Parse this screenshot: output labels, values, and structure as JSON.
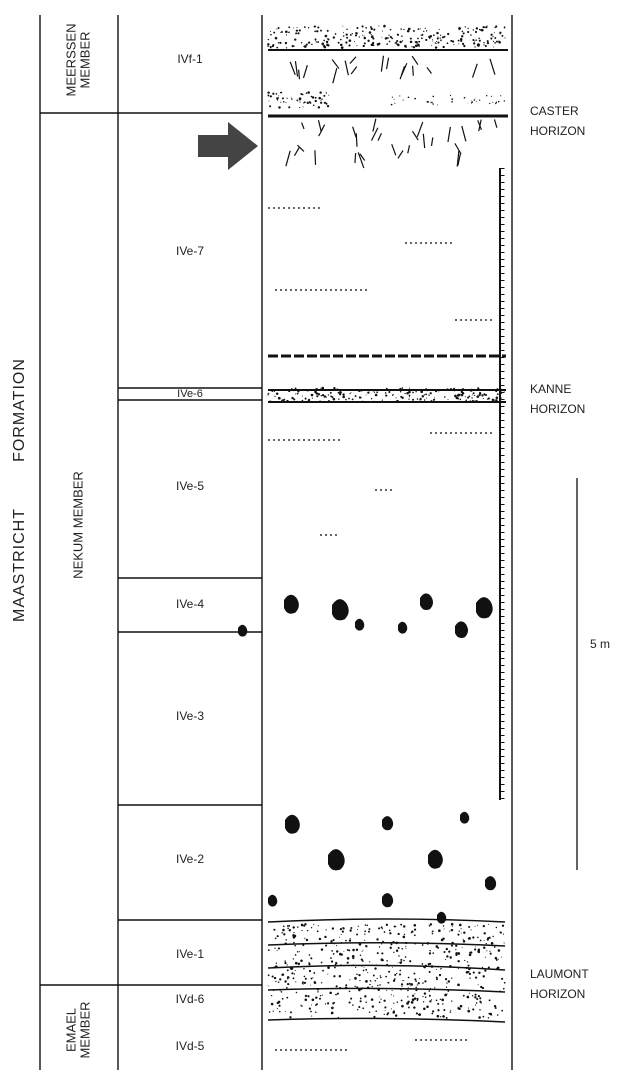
{
  "formation": {
    "words": [
      "MAASTRICHT",
      "FORMATION"
    ]
  },
  "members": [
    {
      "lines": [
        "MEERSSEN",
        "MEMBER"
      ]
    },
    {
      "lines": [
        "NEKUM MEMBER"
      ]
    },
    {
      "lines": [
        "EMAEL",
        "MEMBER"
      ]
    }
  ],
  "units": [
    "IVf-1",
    "IVe-7",
    "IVe-6",
    "IVe-5",
    "IVe-4",
    "IVe-3",
    "IVe-2",
    "IVe-1",
    "IVd-6",
    "IVd-5"
  ],
  "horizons": [
    {
      "lines": [
        "CASTER",
        "HORIZON"
      ]
    },
    {
      "lines": [
        "KANNE",
        "HORIZON"
      ]
    },
    {
      "lines": [
        "LAUMONT",
        "HORIZON"
      ]
    }
  ],
  "scale_bar": {
    "label": "5 m"
  }
}
